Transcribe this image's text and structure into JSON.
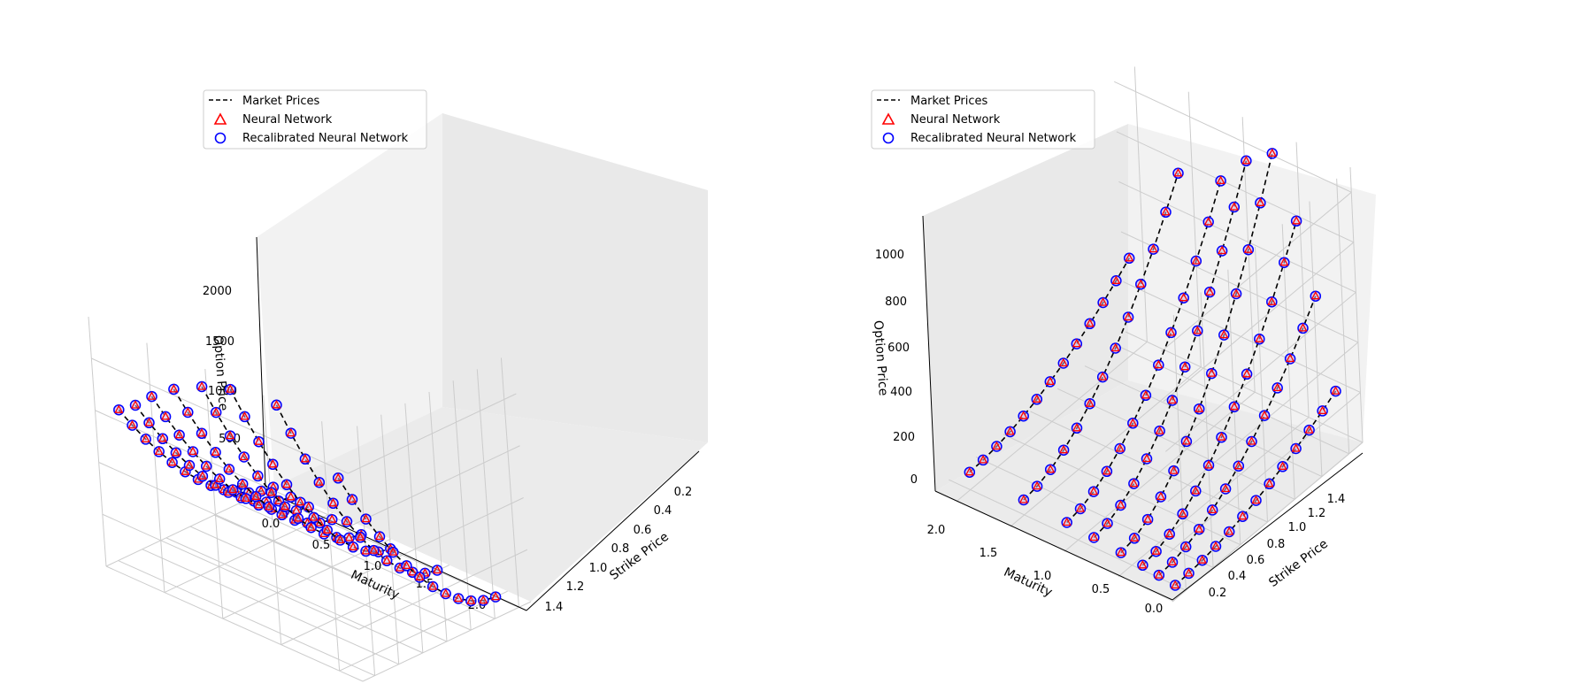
{
  "figure_title": "",
  "colors": {
    "market": "#000000",
    "nn": "#ff0000",
    "recal": "#0000ff",
    "pane_wall": "#f2f2f2",
    "pane_floor": "#ebebeb",
    "grid": "#cccccc"
  },
  "chart_data": [
    {
      "type": "scatter3d",
      "title": "",
      "xlabel": "Maturity",
      "ylabel": "Strike Price",
      "zlabel": "Option Price",
      "xlim": [
        0.0,
        2.2
      ],
      "ylim": [
        0.1,
        1.5
      ],
      "zlim": [
        0,
        2400
      ],
      "xticks": [
        "0.0",
        "0.5",
        "1.0",
        "1.5",
        "2.0"
      ],
      "yticks": [
        "0.2",
        "0.4",
        "0.6",
        "0.8",
        "1.0",
        "1.2",
        "1.4"
      ],
      "zticks": [
        "0",
        "500",
        "1000",
        "1500",
        "2000"
      ],
      "legend": {
        "position": "upper-left",
        "entries": [
          "Market Prices",
          "Neural Network",
          "Recalibrated Neural Network"
        ]
      },
      "series": [
        {
          "name": "Market Prices",
          "style": "dashed-line"
        },
        {
          "name": "Neural Network",
          "style": "red-triangle"
        },
        {
          "name": "Recalibrated Neural Network",
          "style": "blue-circle"
        }
      ],
      "maturities": [
        0.1,
        0.25,
        0.4,
        0.6,
        0.85,
        1.1,
        1.5,
        2.0
      ],
      "strikes": [
        0.2,
        0.3,
        0.4,
        0.5,
        0.6,
        0.7,
        0.8,
        0.9,
        1.0,
        1.1,
        1.2,
        1.3,
        1.4
      ],
      "max_prices": [
        1500,
        1620,
        1780,
        1950,
        2100,
        2200,
        2250,
        1800
      ],
      "min_prices": [
        100,
        80,
        60,
        40,
        20,
        10,
        5,
        0
      ]
    },
    {
      "type": "scatter3d",
      "title": "",
      "xlabel": "Maturity",
      "ylabel": "Strike Price",
      "zlabel": "Option Price",
      "xlim": [
        0.0,
        2.2
      ],
      "ylim": [
        0.1,
        1.5
      ],
      "zlim": [
        0,
        1100
      ],
      "xticks": [
        "0.0",
        "0.5",
        "1.0",
        "1.5",
        "2.0"
      ],
      "yticks": [
        "0.2",
        "0.4",
        "0.6",
        "0.8",
        "1.0",
        "1.2",
        "1.4"
      ],
      "zticks": [
        "0",
        "200",
        "400",
        "600",
        "800",
        "1000"
      ],
      "legend": {
        "position": "upper-left",
        "entries": [
          "Market Prices",
          "Neural Network",
          "Recalibrated Neural Network"
        ]
      },
      "series": [
        {
          "name": "Market Prices",
          "style": "dashed-line"
        },
        {
          "name": "Neural Network",
          "style": "red-triangle"
        },
        {
          "name": "Recalibrated Neural Network",
          "style": "blue-circle"
        }
      ],
      "maturities": [
        0.1,
        0.25,
        0.4,
        0.6,
        0.85,
        1.1,
        1.5,
        2.0
      ],
      "strikes": [
        0.2,
        0.3,
        0.4,
        0.5,
        0.6,
        0.7,
        0.8,
        0.9,
        1.0,
        1.1,
        1.2,
        1.3,
        1.4
      ],
      "max_prices": [
        230,
        580,
        850,
        1080,
        1000,
        870,
        820,
        380
      ],
      "min_prices": [
        0,
        10,
        20,
        30,
        40,
        50,
        60,
        70
      ]
    }
  ]
}
